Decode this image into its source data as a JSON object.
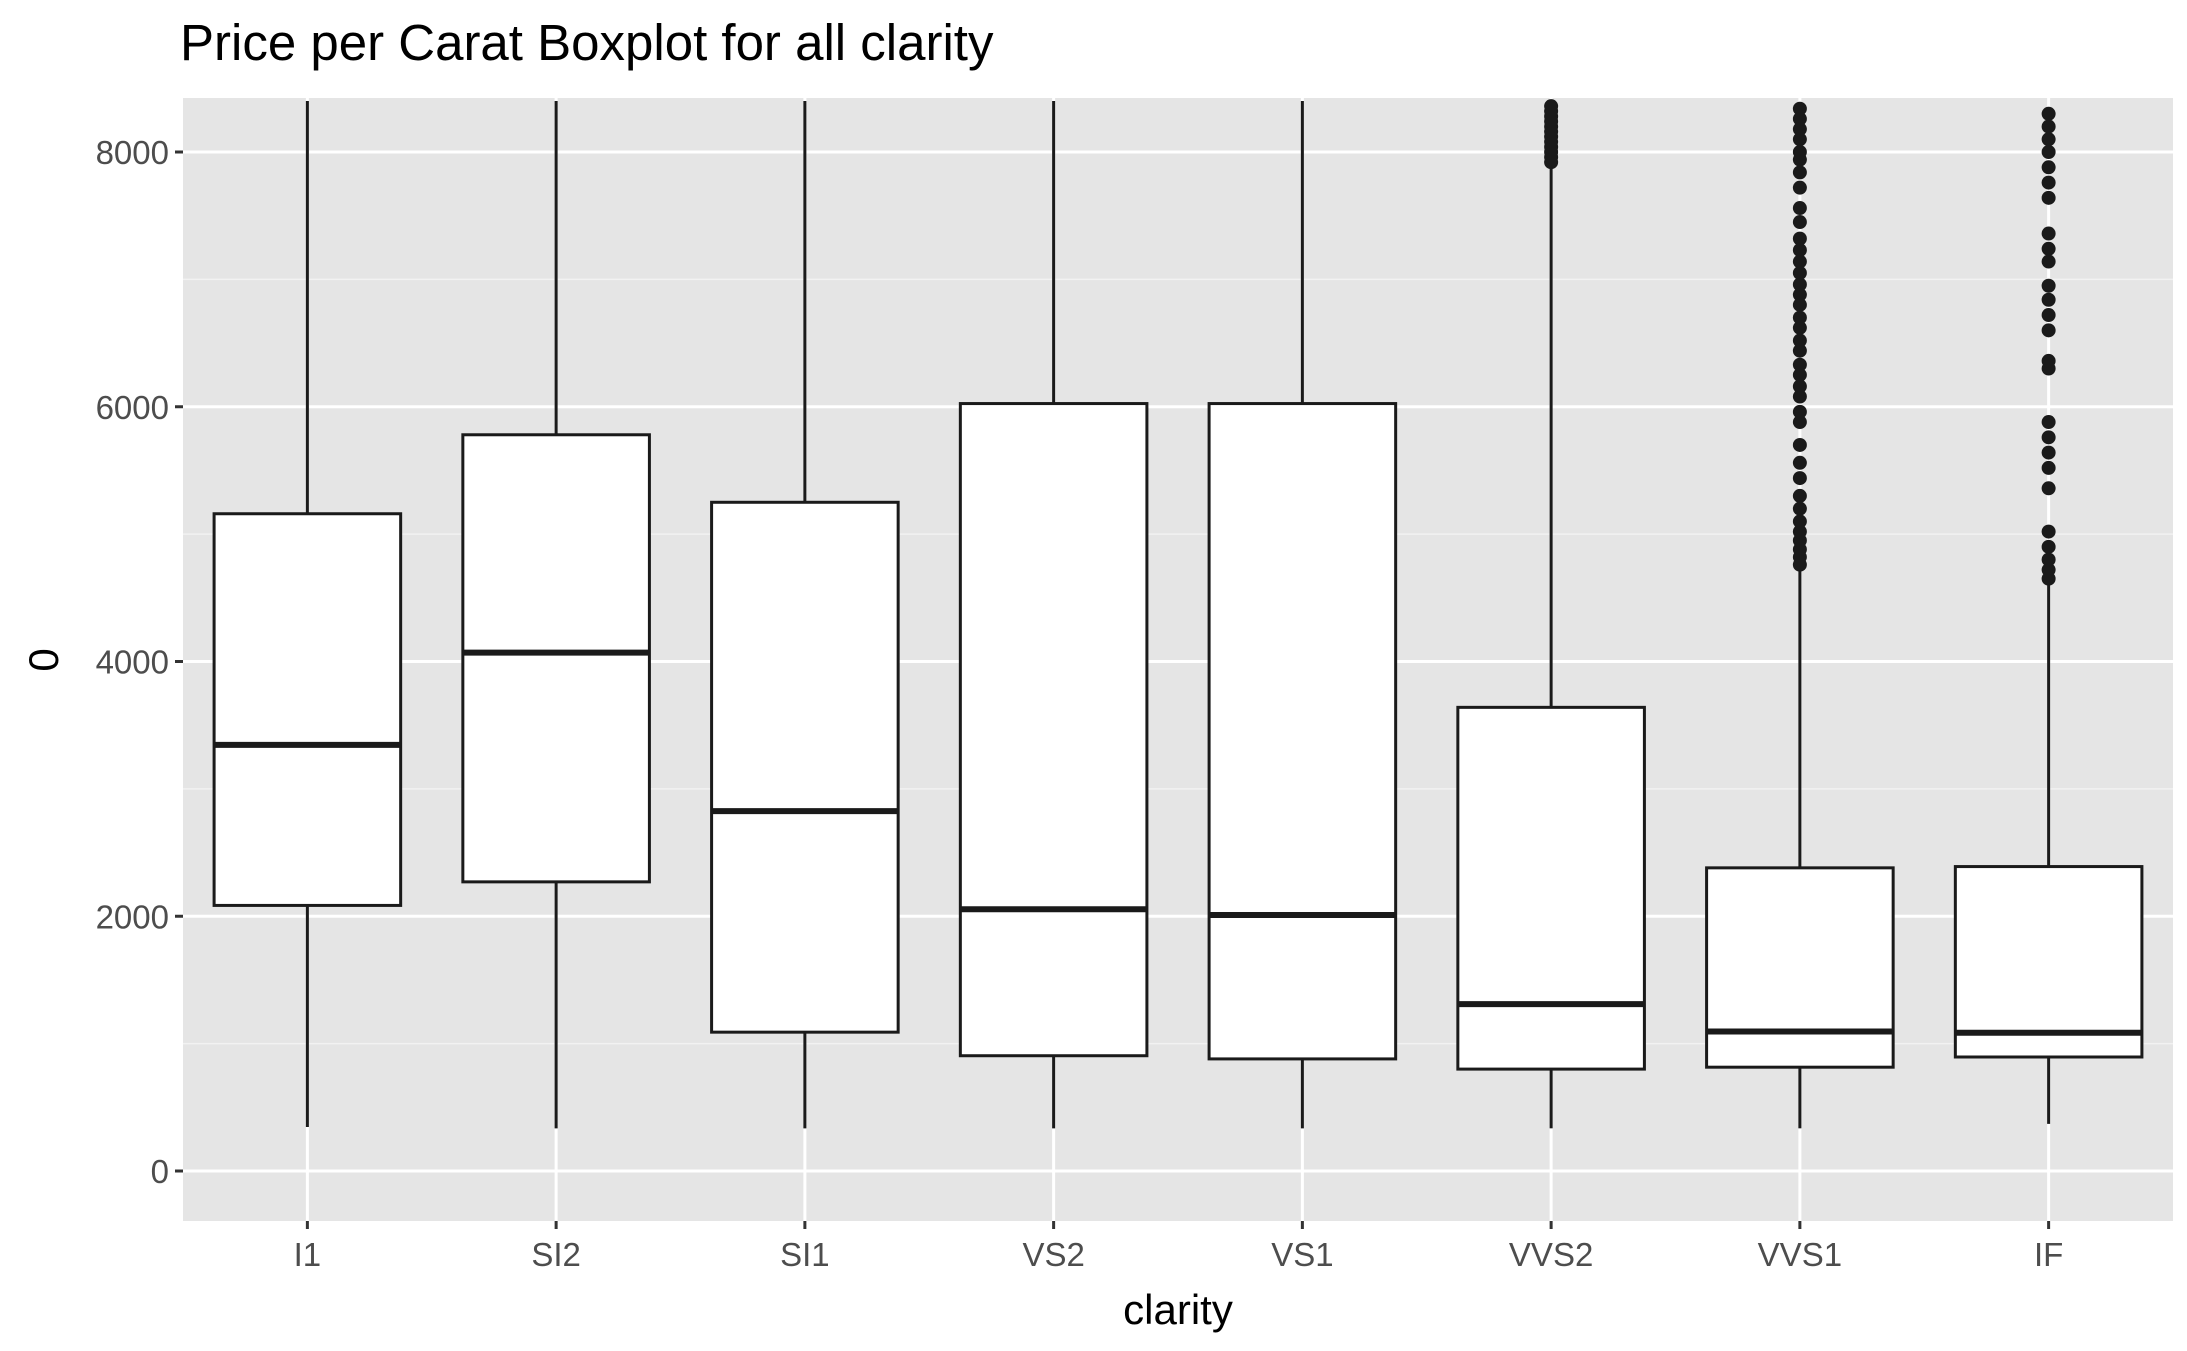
{
  "chart_data": {
    "type": "boxplot",
    "title": "Price per Carat Boxplot for all clarity",
    "xlabel": "clarity",
    "ylabel": "0",
    "ylim": [
      -400,
      8400
    ],
    "yticks": [
      0,
      2000,
      4000,
      6000,
      8000
    ],
    "ytick_labels": [
      "0",
      "2000",
      "4000",
      "6000",
      "8000"
    ],
    "grid": true,
    "categories": [
      "I1",
      "SI2",
      "SI1",
      "VS2",
      "VS1",
      "VVS2",
      "VVS1",
      "IF"
    ],
    "boxes": [
      {
        "category": "I1",
        "whisker_low": 345,
        "q1": 2085,
        "median": 3345,
        "q3": 5160,
        "whisker_high": 8400,
        "outliers": []
      },
      {
        "category": "SI2",
        "whisker_low": 335,
        "q1": 2270,
        "median": 4070,
        "q3": 5780,
        "whisker_high": 8400,
        "outliers": []
      },
      {
        "category": "SI1",
        "whisker_low": 335,
        "q1": 1090,
        "median": 2825,
        "q3": 5250,
        "whisker_high": 8400,
        "outliers": []
      },
      {
        "category": "VS2",
        "whisker_low": 335,
        "q1": 905,
        "median": 2055,
        "q3": 6025,
        "whisker_high": 8400,
        "outliers": []
      },
      {
        "category": "VS1",
        "whisker_low": 335,
        "q1": 880,
        "median": 2010,
        "q3": 6025,
        "whisker_high": 8400,
        "outliers": []
      },
      {
        "category": "VVS2",
        "whisker_low": 335,
        "q1": 800,
        "median": 1310,
        "q3": 3640,
        "whisker_high": 7900,
        "outliers": [
          7920,
          7960,
          8000,
          8040,
          8080,
          8120,
          8160,
          8200,
          8240,
          8280,
          8320,
          8360
        ]
      },
      {
        "category": "VVS1",
        "whisker_low": 335,
        "q1": 815,
        "median": 1095,
        "q3": 2380,
        "whisker_high": 4720,
        "outliers": [
          4760,
          4820,
          4880,
          4950,
          5020,
          5100,
          5200,
          5300,
          5440,
          5560,
          5700,
          5880,
          5960,
          6080,
          6160,
          6250,
          6330,
          6440,
          6520,
          6620,
          6700,
          6800,
          6880,
          6960,
          7050,
          7140,
          7230,
          7320,
          7450,
          7560,
          7720,
          7840,
          7940,
          8000,
          8100,
          8180,
          8260,
          8340
        ]
      },
      {
        "category": "IF",
        "whisker_low": 370,
        "q1": 895,
        "median": 1085,
        "q3": 2390,
        "whisker_high": 4600,
        "outliers": [
          4650,
          4720,
          4800,
          4900,
          5020,
          5360,
          5520,
          5640,
          5760,
          5880,
          6300,
          6360,
          6600,
          6720,
          6840,
          6950,
          7140,
          7240,
          7360,
          7640,
          7760,
          7880,
          8000,
          8100,
          8200,
          8300
        ]
      }
    ]
  }
}
